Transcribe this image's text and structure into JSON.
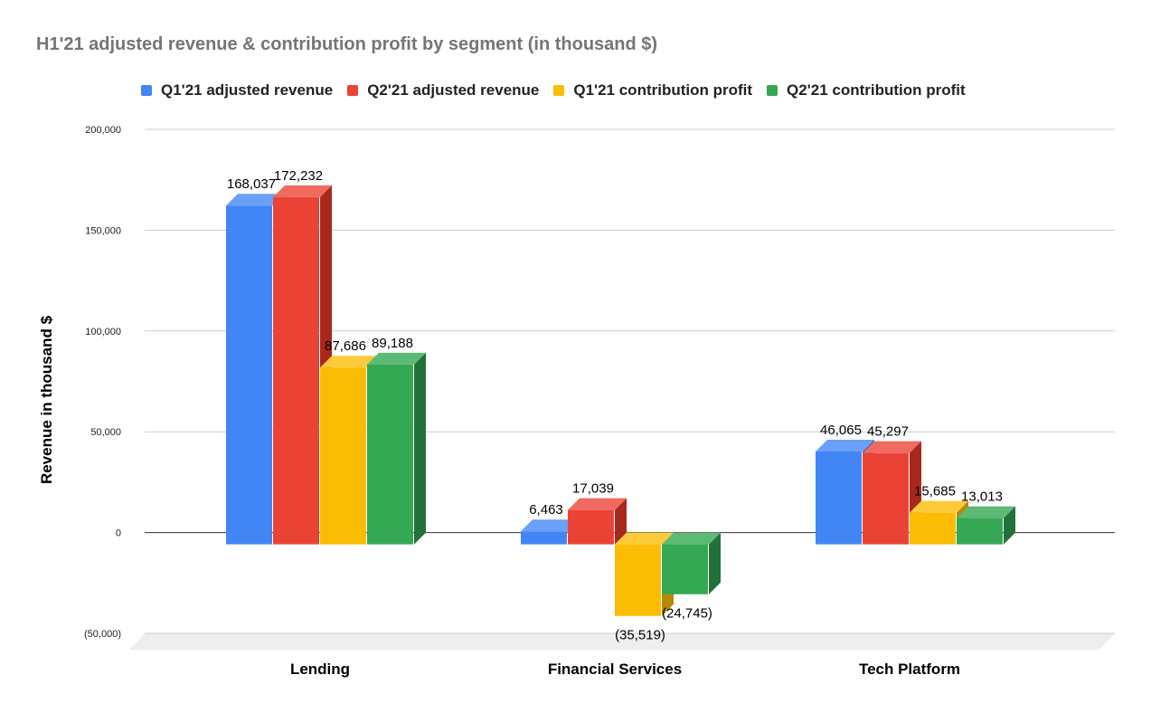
{
  "chart_data": {
    "type": "bar",
    "title": "H1'21 adjusted revenue & contribution profit by segment (in thousand $)",
    "ylabel": "Revenue in thousand $",
    "xlabel": "",
    "categories": [
      "Lending",
      "Financial Services",
      "Tech Platform"
    ],
    "series": [
      {
        "name": "Q1'21 adjusted revenue",
        "values": [
          168037,
          6463,
          46065
        ],
        "labels": [
          "168,037",
          "6,463",
          "46,065"
        ]
      },
      {
        "name": "Q2'21 adjusted revenue",
        "values": [
          172232,
          17039,
          45297
        ],
        "labels": [
          "172,232",
          "17,039",
          "45,297"
        ]
      },
      {
        "name": "Q1'21 contribution profit",
        "values": [
          87686,
          -35519,
          15685
        ],
        "labels": [
          "87,686",
          "(35,519)",
          "15,685"
        ]
      },
      {
        "name": "Q2'21 contribution profit",
        "values": [
          89188,
          -24745,
          13013
        ],
        "labels": [
          "89,188",
          "(24,745)",
          "13,013"
        ]
      }
    ],
    "ylim": [
      -50000,
      200000
    ],
    "yticks": [
      {
        "value": 200000,
        "label": "200,000"
      },
      {
        "value": 150000,
        "label": "150,000"
      },
      {
        "value": 100000,
        "label": "100,000"
      },
      {
        "value": 50000,
        "label": "50,000"
      },
      {
        "value": 0,
        "label": "0"
      },
      {
        "value": -50000,
        "label": "(50,000)"
      }
    ],
    "grid": true,
    "legend_position": "top",
    "style": "3d-bar"
  },
  "colors": {
    "series": [
      "#4285f4",
      "#ea4335",
      "#fbbc04",
      "#34a853"
    ],
    "series_top": [
      "#6aa0f7",
      "#ef6a5f",
      "#fcca3a",
      "#5cba74"
    ],
    "series_side": [
      "#2f63b8",
      "#a9281d",
      "#b88900",
      "#22713a"
    ],
    "title": "#757575",
    "grid": "#cccccc",
    "floor": "#eeeeee"
  }
}
